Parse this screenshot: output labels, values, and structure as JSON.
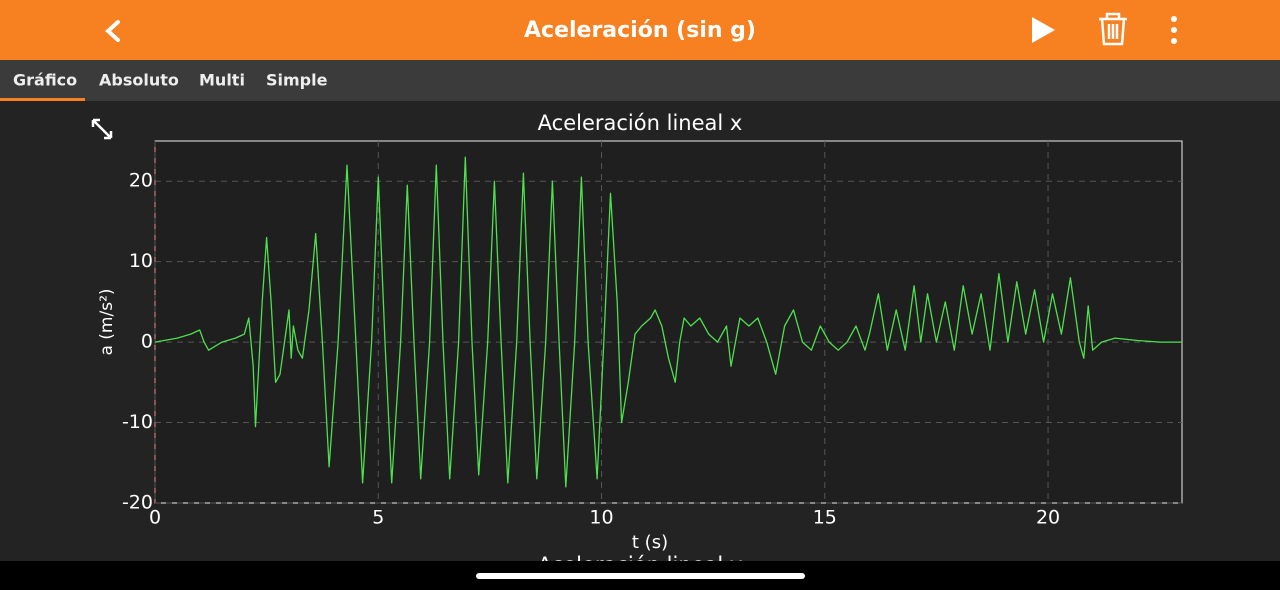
{
  "header": {
    "title": "Aceleración (sin g)"
  },
  "tabs": [
    "Gráfico",
    "Absoluto",
    "Multi",
    "Simple"
  ],
  "chart_data": {
    "type": "line",
    "title": "Aceleración lineal x",
    "xlabel": "t (s)",
    "ylabel": "a (m/s²)",
    "color": "#4ee04e",
    "grid": true,
    "xlim": [
      0,
      23
    ],
    "ylim": [
      -20,
      25
    ],
    "xticks": [
      0,
      5,
      10,
      15,
      20
    ],
    "yticks": [
      -20,
      -10,
      0,
      10,
      20
    ],
    "x": [
      0,
      0.5,
      0.8,
      1.0,
      1.1,
      1.2,
      1.5,
      1.8,
      2.0,
      2.1,
      2.2,
      2.25,
      2.4,
      2.5,
      2.6,
      2.7,
      2.8,
      2.9,
      3.0,
      3.05,
      3.1,
      3.2,
      3.3,
      3.45,
      3.6,
      3.75,
      3.9,
      4.1,
      4.3,
      4.5,
      4.65,
      4.85,
      5.0,
      5.15,
      5.3,
      5.5,
      5.65,
      5.8,
      5.95,
      6.15,
      6.3,
      6.45,
      6.6,
      6.8,
      6.95,
      7.1,
      7.25,
      7.45,
      7.6,
      7.75,
      7.9,
      8.1,
      8.25,
      8.4,
      8.55,
      8.75,
      8.9,
      9.05,
      9.2,
      9.4,
      9.55,
      9.7,
      9.9,
      10.05,
      10.2,
      10.35,
      10.45,
      10.6,
      10.75,
      10.9,
      11.1,
      11.2,
      11.35,
      11.5,
      11.65,
      11.75,
      11.85,
      12.0,
      12.2,
      12.4,
      12.6,
      12.8,
      12.9,
      13.1,
      13.3,
      13.5,
      13.7,
      13.9,
      14.1,
      14.3,
      14.5,
      14.7,
      14.9,
      15.1,
      15.3,
      15.5,
      15.7,
      15.9,
      16.0,
      16.2,
      16.4,
      16.6,
      16.8,
      17.0,
      17.15,
      17.3,
      17.5,
      17.7,
      17.9,
      18.1,
      18.3,
      18.5,
      18.7,
      18.9,
      19.1,
      19.3,
      19.5,
      19.7,
      19.9,
      20.1,
      20.3,
      20.5,
      20.7,
      20.8,
      20.9,
      21.0,
      21.2,
      21.5,
      22,
      22.5,
      23
    ],
    "values": [
      0,
      0.5,
      1,
      1.5,
      0,
      -1,
      0,
      0.5,
      1,
      3,
      -3,
      -10.5,
      5,
      13,
      5,
      -5,
      -4,
      0,
      4,
      -2,
      2,
      -1,
      -2,
      4,
      13.5,
      0,
      -15.5,
      0,
      22,
      0,
      -17.5,
      0,
      20.5,
      0,
      -17.5,
      0,
      19.5,
      0,
      -17,
      0,
      22,
      0,
      -17,
      0,
      23,
      0,
      -16.5,
      0,
      20,
      0,
      -17.5,
      0,
      21,
      0,
      -17,
      0,
      20,
      0,
      -18,
      0,
      20.5,
      0,
      -17,
      0,
      18.5,
      5,
      -10,
      -5,
      1,
      2,
      3,
      4,
      2,
      -2,
      -5,
      0,
      3,
      2,
      3,
      1,
      0,
      2,
      -3,
      3,
      2,
      3,
      0,
      -4,
      2,
      4,
      0,
      -1,
      2,
      0,
      -1,
      0,
      2,
      -1,
      1,
      6,
      -1,
      4,
      -1,
      7,
      0,
      6,
      0,
      5,
      -1,
      7,
      1,
      6,
      -1,
      8.5,
      0,
      7.5,
      1,
      6.5,
      0,
      6,
      1,
      8,
      0,
      -2,
      4.5,
      -1,
      0,
      0.5,
      0.2,
      0,
      0
    ]
  },
  "next_chart": {
    "title": "Aceleración lineal y"
  }
}
